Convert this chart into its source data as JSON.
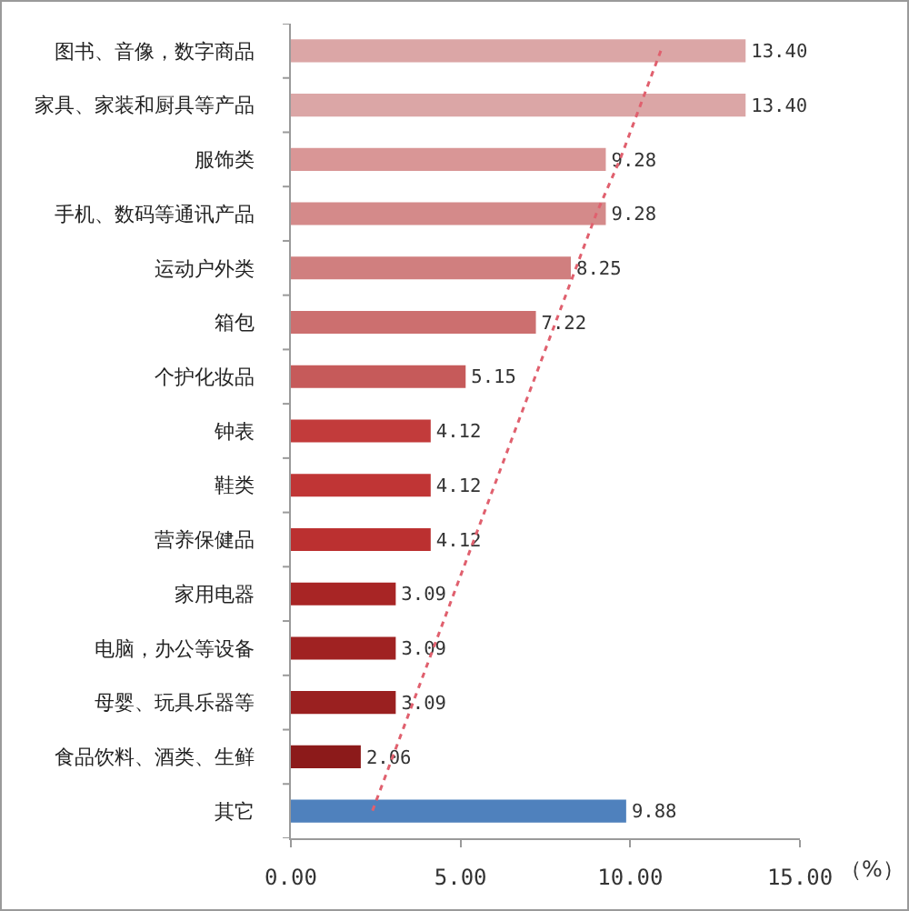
{
  "chart_data": {
    "type": "bar",
    "orientation": "horizontal",
    "xlabel": "（%）",
    "categories": [
      "图书、音像，数字商品",
      "家具、家装和厨具等产品",
      "服饰类",
      "手机、数码等通讯产品",
      "运动户外类",
      "箱包",
      "个护化妆品",
      "钟表",
      "鞋类",
      "营养保健品",
      "家用电器",
      "电脑，办公等设备",
      "母婴、玩具乐器等",
      "食品饮料、酒类、生鲜",
      "其它"
    ],
    "series": [
      {
        "values": [
          13.4,
          13.4,
          9.28,
          9.28,
          8.25,
          7.22,
          5.15,
          4.12,
          4.12,
          4.12,
          3.09,
          3.09,
          3.09,
          2.06,
          9.88
        ],
        "value_labels": [
          "13.40",
          "13.40",
          "9.28",
          "9.28",
          "8.25",
          "7.22",
          "5.15",
          "4.12",
          "4.12",
          "4.12",
          "3.09",
          "3.09",
          "3.09",
          "2.06",
          "9.88"
        ],
        "colors": [
          "#dba6a6",
          "#dba6a6",
          "#d99696",
          "#d48a8a",
          "#d07f7f",
          "#cc6f6f",
          "#c65a5a",
          "#c23b3b",
          "#c03535",
          "#bb3030",
          "#a82525",
          "#a02222",
          "#9a2020",
          "#8c1a1a",
          "#4f81bd"
        ]
      },
      {
        "type": "line",
        "color": "#e0606e",
        "line_style": "dotted",
        "values": [
          10.9,
          10.3,
          9.7,
          9.0,
          8.4,
          7.8,
          7.2,
          6.6,
          6.0,
          5.4,
          4.8,
          4.2,
          3.6,
          3.0,
          2.4
        ]
      }
    ],
    "xlim": [
      0,
      15
    ],
    "xticks": [
      {
        "value": 0,
        "label": "0.00"
      },
      {
        "value": 5,
        "label": "5.00"
      },
      {
        "value": 10,
        "label": "10.00"
      },
      {
        "value": 15,
        "label": "15.00"
      }
    ]
  }
}
